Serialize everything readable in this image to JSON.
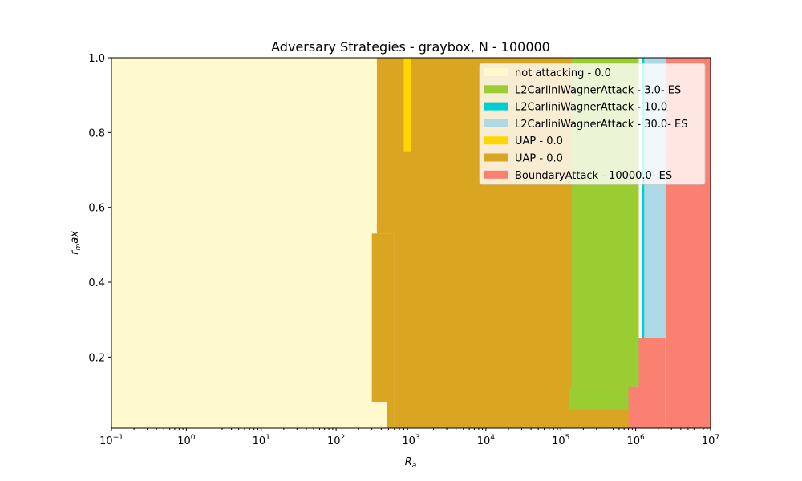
{
  "chart_data": {
    "type": "heatmap",
    "title": "Adversary Strategies - graybox, N - 100000",
    "xlabel_main": "R",
    "xlabel_sub": "a",
    "ylabel_main": "r",
    "ylabel_sub": "m",
    "ylabel_rest": "ax",
    "x_scale": "log",
    "xlim": [
      0.1,
      10000000
    ],
    "ylim": [
      0.01,
      1.0
    ],
    "x_ticks": [
      {
        "value": 0.1,
        "base": "10",
        "exp": "−1"
      },
      {
        "value": 1,
        "base": "10",
        "exp": "0"
      },
      {
        "value": 10,
        "base": "10",
        "exp": "1"
      },
      {
        "value": 100,
        "base": "10",
        "exp": "2"
      },
      {
        "value": 1000,
        "base": "10",
        "exp": "3"
      },
      {
        "value": 10000,
        "base": "10",
        "exp": "4"
      },
      {
        "value": 100000,
        "base": "10",
        "exp": "5"
      },
      {
        "value": 1000000,
        "base": "10",
        "exp": "6"
      },
      {
        "value": 10000000,
        "base": "10",
        "exp": "7"
      }
    ],
    "y_ticks": [
      {
        "value": 0.2,
        "label": "0.2"
      },
      {
        "value": 0.4,
        "label": "0.4"
      },
      {
        "value": 0.6,
        "label": "0.6"
      },
      {
        "value": 0.8,
        "label": "0.8"
      },
      {
        "value": 1.0,
        "label": "1.0"
      }
    ],
    "legend_position": "top-right",
    "legend": [
      {
        "label": "not attacking - 0.0",
        "color": "#fffacd"
      },
      {
        "label": "L2CarliniWagnerAttack - 3.0- ES",
        "color": "#9acd32"
      },
      {
        "label": "L2CarliniWagnerAttack - 10.0",
        "color": "#00ced1"
      },
      {
        "label": "L2CarliniWagnerAttack - 30.0- ES",
        "color": "#add8e6"
      },
      {
        "label": "UAP - 0.0",
        "color": "#ffd700"
      },
      {
        "label": "UAP - 0.0",
        "color": "#daa520"
      },
      {
        "label": "BoundaryAttack - 10000.0- ES",
        "color": "#fa8072"
      }
    ],
    "regions": [
      {
        "strategy": 0,
        "x": [
          0.1,
          1000000
        ],
        "y": [
          0.01,
          1.0
        ]
      },
      {
        "strategy": 5,
        "x": [
          600,
          1000000
        ],
        "y": [
          0.01,
          1.0
        ]
      },
      {
        "strategy": 5,
        "x": [
          300,
          600
        ],
        "y": [
          0.08,
          0.53
        ]
      },
      {
        "strategy": 5,
        "x": [
          480,
          600
        ],
        "y": [
          0.01,
          0.08
        ]
      },
      {
        "strategy": 5,
        "x": [
          350,
          1000
        ],
        "y": [
          0.53,
          1.0
        ]
      },
      {
        "strategy": 4,
        "x": [
          800,
          1000
        ],
        "y": [
          0.75,
          1.0
        ]
      },
      {
        "strategy": 1,
        "x": [
          140000,
          1100000
        ],
        "y": [
          0.12,
          1.0
        ]
      },
      {
        "strategy": 1,
        "x": [
          130000,
          800000
        ],
        "y": [
          0.06,
          0.12
        ]
      },
      {
        "strategy": 3,
        "x": [
          1250000,
          2500000
        ],
        "y": [
          0.25,
          1.0
        ]
      },
      {
        "strategy": 2,
        "x": [
          1200000,
          1300000
        ],
        "y": [
          0.25,
          1.0
        ]
      },
      {
        "strategy": 6,
        "x": [
          2500000,
          10000000
        ],
        "y": [
          0.01,
          1.0
        ]
      },
      {
        "strategy": 6,
        "x": [
          1100000,
          2500000
        ],
        "y": [
          0.01,
          0.25
        ]
      },
      {
        "strategy": 6,
        "x": [
          800000,
          1100000
        ],
        "y": [
          0.01,
          0.12
        ]
      }
    ]
  }
}
